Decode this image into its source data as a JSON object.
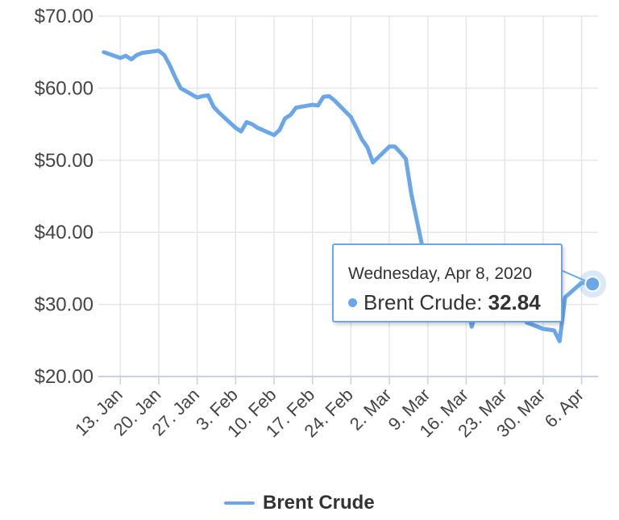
{
  "chart_data": {
    "type": "line",
    "title": "",
    "xlabel": "",
    "ylabel": "",
    "ylim": [
      20,
      70
    ],
    "xlim": [
      "2020-01-09",
      "2020-04-09"
    ],
    "yticks": [
      "$20.00",
      "$30.00",
      "$40.00",
      "$50.00",
      "$60.00",
      "$70.00"
    ],
    "xticks": [
      "13. Jan",
      "20. Jan",
      "27. Jan",
      "3. Feb",
      "10. Feb",
      "17. Feb",
      "24. Feb",
      "2. Mar",
      "9. Mar",
      "16. Mar",
      "23. Mar",
      "30. Mar",
      "6. Apr"
    ],
    "xtick_dates": [
      "2020-01-13",
      "2020-01-20",
      "2020-01-27",
      "2020-02-03",
      "2020-02-10",
      "2020-02-17",
      "2020-02-24",
      "2020-03-02",
      "2020-03-09",
      "2020-03-16",
      "2020-03-23",
      "2020-03-30",
      "2020-04-06"
    ],
    "grid": true,
    "legend_position": "bottom",
    "colors": {
      "series": "#6aa6e8",
      "grid": "#e6e6e6",
      "axis": "#c6d0e8"
    },
    "series": [
      {
        "name": "Brent Crude",
        "x": [
          "2020-01-10",
          "2020-01-13",
          "2020-01-14",
          "2020-01-15",
          "2020-01-16",
          "2020-01-17",
          "2020-01-20",
          "2020-01-21",
          "2020-01-22",
          "2020-01-23",
          "2020-01-24",
          "2020-01-27",
          "2020-01-28",
          "2020-01-29",
          "2020-01-30",
          "2020-01-31",
          "2020-02-03",
          "2020-02-04",
          "2020-02-05",
          "2020-02-06",
          "2020-02-07",
          "2020-02-10",
          "2020-02-11",
          "2020-02-12",
          "2020-02-13",
          "2020-02-14",
          "2020-02-17",
          "2020-02-18",
          "2020-02-19",
          "2020-02-20",
          "2020-02-21",
          "2020-02-24",
          "2020-02-25",
          "2020-02-26",
          "2020-02-27",
          "2020-02-28",
          "2020-03-02",
          "2020-03-03",
          "2020-03-04",
          "2020-03-05",
          "2020-03-06",
          "2020-03-09",
          "2020-03-10",
          "2020-03-11",
          "2020-03-12",
          "2020-03-13",
          "2020-03-16",
          "2020-03-17",
          "2020-03-18",
          "2020-03-19",
          "2020-03-20",
          "2020-03-23",
          "2020-03-24",
          "2020-03-25",
          "2020-03-26",
          "2020-03-27",
          "2020-03-30",
          "2020-03-31",
          "2020-04-01",
          "2020-04-02",
          "2020-04-03",
          "2020-04-06",
          "2020-04-07",
          "2020-04-08"
        ],
        "values": [
          65.0,
          64.2,
          64.5,
          64.0,
          64.6,
          64.9,
          65.2,
          64.6,
          63.2,
          61.5,
          60.0,
          58.7,
          58.9,
          59.0,
          57.4,
          56.6,
          54.5,
          54.0,
          55.3,
          55.0,
          54.5,
          53.5,
          54.2,
          55.8,
          56.3,
          57.3,
          57.7,
          57.6,
          58.8,
          58.9,
          58.3,
          56.0,
          54.5,
          52.9,
          51.8,
          49.7,
          51.9,
          51.9,
          51.1,
          50.2,
          45.3,
          34.4,
          37.2,
          35.8,
          35.4,
          35.8,
          30.5,
          26.9,
          29.6,
          29.5,
          29.5,
          30.0,
          29.6,
          29.2,
          28.5,
          27.5,
          26.6,
          26.5,
          26.4,
          24.9,
          31.0,
          33.0,
          32.9,
          32.84
        ]
      }
    ],
    "tooltip": {
      "date": "Wednesday, Apr 8, 2020",
      "series_name": "Brent Crude",
      "value": "32.84",
      "x": "2020-04-08",
      "y": 32.84
    }
  }
}
